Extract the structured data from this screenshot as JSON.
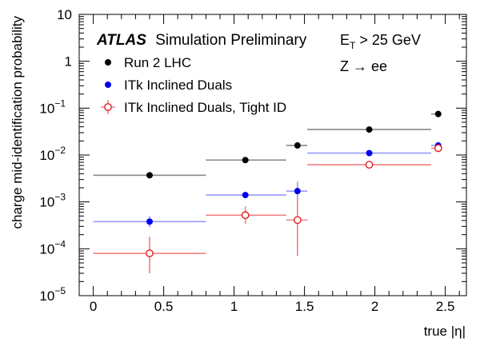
{
  "chart_data": {
    "type": "scatter",
    "xlabel": "true |η|",
    "ylabel": "charge mid-identification probability",
    "xlim": [
      -0.1,
      2.65
    ],
    "ylim": [
      1e-05,
      10
    ],
    "yscale": "log",
    "xticks": [
      "0",
      "0.5",
      "1",
      "1.5",
      "2",
      "2.5"
    ],
    "xtick_values": [
      0,
      0.5,
      1,
      1.5,
      2,
      2.5
    ],
    "ytick_values": [
      1e-05,
      0.0001,
      0.001,
      0.01,
      0.1,
      1,
      10
    ],
    "ytick_labels": [
      {
        "base": "10",
        "exp": "−5"
      },
      {
        "base": "10",
        "exp": "−4"
      },
      {
        "base": "10",
        "exp": "−3"
      },
      {
        "base": "10",
        "exp": "−2"
      },
      {
        "base": "10",
        "exp": "−1"
      },
      {
        "base": "1",
        "exp": ""
      },
      {
        "base": "10",
        "exp": ""
      }
    ],
    "annotations": {
      "atlas": "ATLAS",
      "atlas_suffix": "Simulation Preliminary",
      "et_cut_prefix": "E",
      "et_cut_sub": "T",
      "et_cut_suffix": " > 25 GeV",
      "channel": "Z → ee"
    },
    "series": [
      {
        "name": "Run 2 LHC",
        "color": "#000000",
        "line_color": "#8a8a8a",
        "marker": "filled-circle",
        "points": [
          {
            "x": 0.4,
            "xlo": 0.0,
            "xhi": 0.8,
            "y": 0.0037,
            "ylo": 0.0037,
            "yhi": 0.0037
          },
          {
            "x": 1.08,
            "xlo": 0.8,
            "xhi": 1.37,
            "y": 0.0078,
            "ylo": 0.0078,
            "yhi": 0.0078
          },
          {
            "x": 1.45,
            "xlo": 1.37,
            "xhi": 1.52,
            "y": 0.016,
            "ylo": 0.016,
            "yhi": 0.016
          },
          {
            "x": 1.96,
            "xlo": 1.52,
            "xhi": 2.4,
            "y": 0.035,
            "ylo": 0.035,
            "yhi": 0.035
          },
          {
            "x": 2.45,
            "xlo": 2.4,
            "xhi": 2.47,
            "y": 0.075,
            "ylo": 0.075,
            "yhi": 0.075
          }
        ]
      },
      {
        "name": "ITk Inclined Duals",
        "color": "#0000ee",
        "line_color": "#9999ff",
        "marker": "filled-circle",
        "points": [
          {
            "x": 0.4,
            "xlo": 0.0,
            "xhi": 0.8,
            "y": 0.00038,
            "ylo": 0.00029,
            "yhi": 0.0005
          },
          {
            "x": 1.08,
            "xlo": 0.8,
            "xhi": 1.37,
            "y": 0.0014,
            "ylo": 0.0014,
            "yhi": 0.0014
          },
          {
            "x": 1.45,
            "xlo": 1.37,
            "xhi": 1.52,
            "y": 0.0017,
            "ylo": 0.0011,
            "yhi": 0.0027
          },
          {
            "x": 1.96,
            "xlo": 1.52,
            "xhi": 2.4,
            "y": 0.011,
            "ylo": 0.011,
            "yhi": 0.011
          },
          {
            "x": 2.45,
            "xlo": 2.4,
            "xhi": 2.47,
            "y": 0.016,
            "ylo": 0.016,
            "yhi": 0.016
          }
        ]
      },
      {
        "name": "ITk Inclined Duals, Tight ID",
        "color": "#e02020",
        "line_color": "#f08080",
        "marker": "open-circle",
        "points": [
          {
            "x": 0.4,
            "xlo": 0.0,
            "xhi": 0.8,
            "y": 8e-05,
            "ylo": 3e-05,
            "yhi": 0.00018
          },
          {
            "x": 1.08,
            "xlo": 0.8,
            "xhi": 1.37,
            "y": 0.00052,
            "ylo": 0.00034,
            "yhi": 0.0008
          },
          {
            "x": 1.45,
            "xlo": 1.37,
            "xhi": 1.52,
            "y": 0.00041,
            "ylo": 7e-05,
            "yhi": 0.0012
          },
          {
            "x": 1.96,
            "xlo": 1.52,
            "xhi": 2.4,
            "y": 0.0062,
            "ylo": 0.0062,
            "yhi": 0.0062
          },
          {
            "x": 2.45,
            "xlo": 2.4,
            "xhi": 2.47,
            "y": 0.014,
            "ylo": 0.012,
            "yhi": 0.016
          }
        ]
      }
    ]
  }
}
